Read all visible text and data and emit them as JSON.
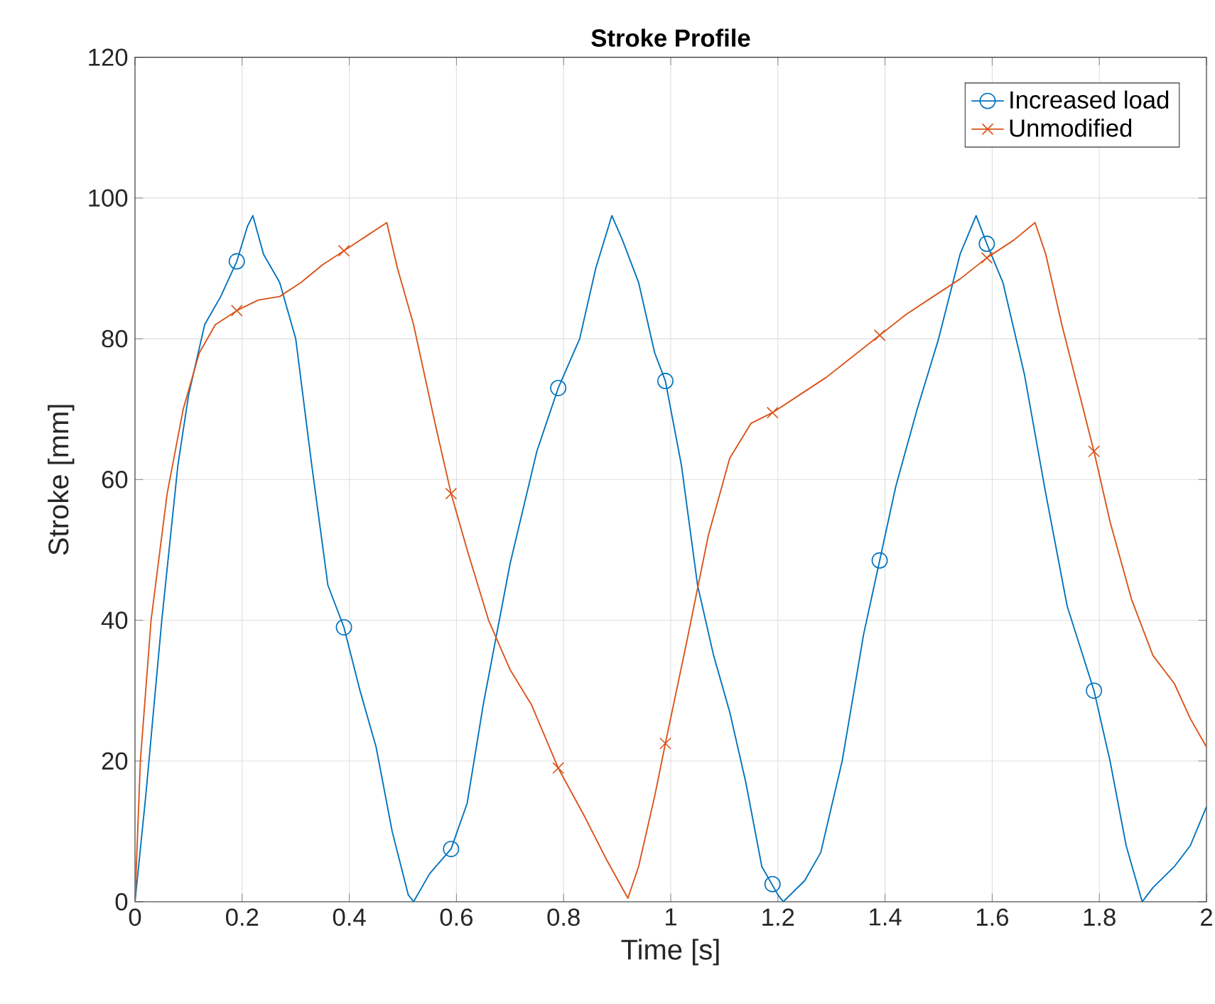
{
  "chart_data": {
    "type": "line",
    "title": "Stroke Profile",
    "xlabel": "Time [s]",
    "ylabel": "Stroke [mm]",
    "xlim": [
      0,
      2
    ],
    "ylim": [
      0,
      120
    ],
    "xticks": [
      0,
      0.2,
      0.4,
      0.6,
      0.8,
      1,
      1.2,
      1.4,
      1.6,
      1.8,
      2
    ],
    "yticks": [
      0,
      20,
      40,
      60,
      80,
      100,
      120
    ],
    "grid": true,
    "legend": "top right",
    "series": [
      {
        "name": "Increased load",
        "color": "#0072bd",
        "x": [
          0,
          0.02,
          0.05,
          0.08,
          0.1,
          0.13,
          0.16,
          0.19,
          0.21,
          0.22,
          0.24,
          0.27,
          0.3,
          0.33,
          0.36,
          0.39,
          0.42,
          0.45,
          0.48,
          0.51,
          0.52,
          0.55,
          0.59,
          0.62,
          0.65,
          0.7,
          0.75,
          0.79,
          0.83,
          0.86,
          0.89,
          0.91,
          0.94,
          0.97,
          0.99,
          1.02,
          1.05,
          1.08,
          1.11,
          1.14,
          1.17,
          1.2,
          1.21,
          1.25,
          1.28,
          1.32,
          1.36,
          1.39,
          1.42,
          1.46,
          1.5,
          1.54,
          1.57,
          1.59,
          1.62,
          1.66,
          1.7,
          1.74,
          1.79,
          1.82,
          1.85,
          1.88,
          1.9,
          1.94,
          1.97,
          2
        ],
        "values": [
          0,
          15,
          40,
          62,
          72,
          82,
          86,
          91,
          96,
          97.5,
          92,
          88,
          80,
          62,
          45,
          39,
          30,
          22,
          10,
          1,
          0,
          4,
          7.5,
          14,
          28,
          48,
          64,
          73,
          80,
          90,
          97.5,
          94,
          88,
          78,
          74,
          62,
          45,
          35,
          27,
          17,
          5,
          1,
          0,
          3,
          7,
          20,
          38,
          48.5,
          59,
          70,
          80,
          92,
          97.5,
          93.5,
          88,
          75,
          58,
          42,
          30,
          20,
          8,
          0,
          2,
          5,
          8,
          13.5
        ]
      },
      {
        "type": "scatter",
        "color": "#0072bd",
        "marker": "circle",
        "x": [
          0.19,
          0.39,
          0.59,
          0.79,
          0.99,
          1.19,
          1.39,
          1.59,
          1.79
        ],
        "values": [
          91,
          39,
          7.5,
          73,
          74,
          2.5,
          48.5,
          93.5,
          30
        ]
      },
      {
        "name": "Unmodified",
        "color": "#d95319",
        "x": [
          0,
          0.01,
          0.03,
          0.06,
          0.09,
          0.12,
          0.15,
          0.19,
          0.23,
          0.27,
          0.31,
          0.35,
          0.39,
          0.43,
          0.47,
          0.49,
          0.52,
          0.56,
          0.59,
          0.62,
          0.66,
          0.7,
          0.74,
          0.79,
          0.84,
          0.88,
          0.92,
          0.94,
          0.97,
          0.99,
          1.03,
          1.07,
          1.11,
          1.15,
          1.19,
          1.24,
          1.29,
          1.34,
          1.39,
          1.44,
          1.49,
          1.54,
          1.59,
          1.64,
          1.68,
          1.7,
          1.73,
          1.76,
          1.79,
          1.82,
          1.86,
          1.9,
          1.94,
          1.97,
          2
        ],
        "values": [
          0,
          20,
          40,
          58,
          70,
          78,
          82,
          84,
          85.5,
          86,
          88,
          90.5,
          92.5,
          94.5,
          96.5,
          90,
          82,
          68,
          58,
          50,
          40,
          33,
          28,
          19,
          12,
          6,
          0.5,
          5,
          15,
          22.5,
          37,
          52,
          63,
          68,
          69.5,
          72,
          74.5,
          77.5,
          80.5,
          83.5,
          86,
          88.5,
          91.5,
          94,
          96.5,
          92,
          82,
          73,
          64,
          54,
          43,
          35,
          31,
          26,
          22
        ]
      },
      {
        "type": "scatter",
        "color": "#d95319",
        "marker": "cross",
        "x": [
          0.19,
          0.39,
          0.59,
          0.79,
          0.99,
          1.19,
          1.39,
          1.59,
          1.79
        ],
        "values": [
          84,
          92.5,
          58,
          19,
          22.5,
          69.5,
          80.5,
          91.5,
          64
        ]
      }
    ]
  }
}
